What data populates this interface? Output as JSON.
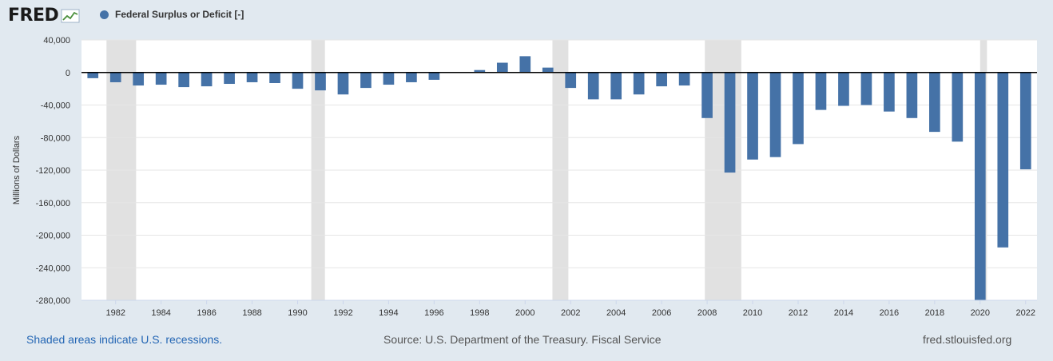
{
  "header": {
    "logo_text": "FRED",
    "legend_label": "Federal Surplus or Deficit [-]"
  },
  "footer": {
    "recession_note": "Shaded areas indicate U.S. recessions.",
    "source": "Source: U.S. Department of the Treasury. Fiscal Service",
    "site": "fred.stlouisfed.org"
  },
  "colors": {
    "bar": "#4572a7",
    "recession": "#e1e1e1",
    "background": "#e1e9f0",
    "plot_background": "#ffffff",
    "link": "#2466b4"
  },
  "chart_data": {
    "type": "bar",
    "ylabel": "Millions of Dollars",
    "ylim": [
      -280000,
      40000
    ],
    "yticks": [
      40000,
      0,
      -40000,
      -80000,
      -120000,
      -160000,
      -200000,
      -240000,
      -280000
    ],
    "ytick_labels": [
      "40,000",
      "0",
      "-40,000",
      "-80,000",
      "-120,000",
      "-160,000",
      "-200,000",
      "-240,000",
      "-280,000"
    ],
    "xlim": [
      1980.5,
      2022.5
    ],
    "xticks": [
      1982,
      1984,
      1986,
      1988,
      1990,
      1992,
      1994,
      1996,
      1998,
      2000,
      2002,
      2004,
      2006,
      2008,
      2010,
      2012,
      2014,
      2016,
      2018,
      2020,
      2022
    ],
    "x": [
      1981,
      1982,
      1983,
      1984,
      1985,
      1986,
      1987,
      1988,
      1989,
      1990,
      1991,
      1992,
      1993,
      1994,
      1995,
      1996,
      1997,
      1998,
      1999,
      2000,
      2001,
      2002,
      2003,
      2004,
      2005,
      2006,
      2007,
      2008,
      2009,
      2010,
      2011,
      2012,
      2013,
      2014,
      2015,
      2016,
      2017,
      2018,
      2019,
      2020,
      2021,
      2022
    ],
    "values": [
      -7000,
      -12000,
      -16000,
      -15000,
      -18000,
      -17000,
      -14000,
      -12000,
      -13000,
      -20000,
      -22000,
      -27000,
      -19000,
      -15000,
      -12000,
      -9000,
      0,
      3000,
      12000,
      20000,
      6000,
      -19000,
      -33000,
      -33000,
      -27000,
      -17000,
      -16000,
      -56000,
      -123000,
      -107000,
      -104000,
      -88000,
      -46000,
      -41000,
      -40000,
      -48000,
      -56000,
      -73000,
      -85000,
      -285000,
      -215000,
      -119000
    ],
    "recessions": [
      [
        1981.6,
        1982.9
      ],
      [
        1990.6,
        1991.2
      ],
      [
        2001.2,
        2001.9
      ],
      [
        2007.9,
        2009.5
      ],
      [
        2020.0,
        2020.3
      ]
    ],
    "grid": true,
    "legend": "top-left"
  }
}
